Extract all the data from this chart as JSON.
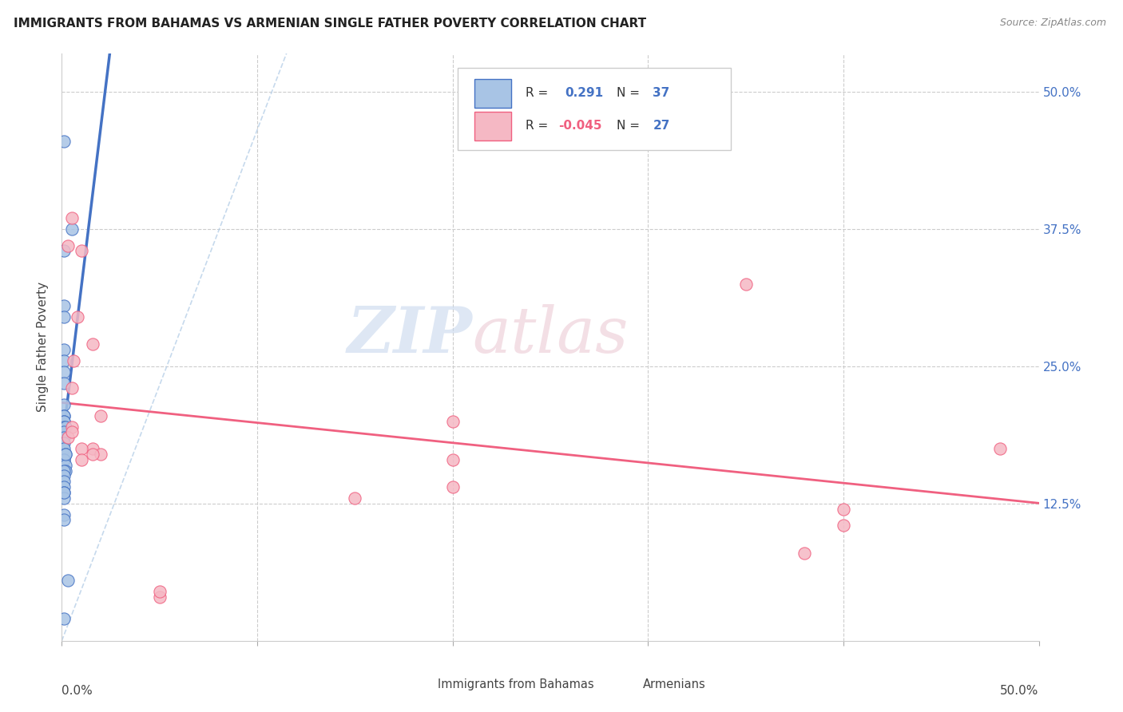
{
  "title": "IMMIGRANTS FROM BAHAMAS VS ARMENIAN SINGLE FATHER POVERTY CORRELATION CHART",
  "source": "Source: ZipAtlas.com",
  "ylabel": "Single Father Poverty",
  "ytick_values": [
    0.125,
    0.25,
    0.375,
    0.5
  ],
  "ytick_labels": [
    "12.5%",
    "25.0%",
    "37.5%",
    "50.0%"
  ],
  "xlim": [
    0.0,
    0.5
  ],
  "ylim": [
    0.0,
    0.535
  ],
  "color_bahamas": "#a8c4e5",
  "color_armenian": "#f5b8c4",
  "line_color_bahamas": "#4472c4",
  "line_color_armenian": "#f06080",
  "dash_color": "#b0c8e8",
  "watermark_zip": "ZIP",
  "watermark_atlas": "atlas",
  "legend_text1": "R =  0.291   N = 37",
  "legend_text2": "R = -0.045   N = 27",
  "bahamas_x": [
    0.001,
    0.005,
    0.001,
    0.001,
    0.001,
    0.001,
    0.001,
    0.001,
    0.001,
    0.001,
    0.001,
    0.001,
    0.001,
    0.001,
    0.001,
    0.002,
    0.001,
    0.001,
    0.001,
    0.001,
    0.002,
    0.001,
    0.001,
    0.002,
    0.002,
    0.001,
    0.001,
    0.001,
    0.001,
    0.001,
    0.001,
    0.001,
    0.002,
    0.001,
    0.001,
    0.003,
    0.001
  ],
  "bahamas_y": [
    0.455,
    0.375,
    0.355,
    0.305,
    0.295,
    0.265,
    0.255,
    0.245,
    0.235,
    0.215,
    0.205,
    0.205,
    0.2,
    0.2,
    0.195,
    0.195,
    0.19,
    0.185,
    0.18,
    0.175,
    0.17,
    0.165,
    0.165,
    0.16,
    0.155,
    0.155,
    0.15,
    0.145,
    0.14,
    0.135,
    0.13,
    0.135,
    0.17,
    0.115,
    0.11,
    0.055,
    0.02
  ],
  "armenian_x": [
    0.005,
    0.003,
    0.01,
    0.008,
    0.006,
    0.016,
    0.005,
    0.005,
    0.003,
    0.02,
    0.016,
    0.02,
    0.005,
    0.016,
    0.48,
    0.2,
    0.35,
    0.2,
    0.01,
    0.01,
    0.15,
    0.2,
    0.4,
    0.4,
    0.38,
    0.05,
    0.05
  ],
  "armenian_y": [
    0.385,
    0.36,
    0.355,
    0.295,
    0.255,
    0.27,
    0.23,
    0.195,
    0.185,
    0.205,
    0.175,
    0.17,
    0.19,
    0.17,
    0.175,
    0.165,
    0.325,
    0.14,
    0.175,
    0.165,
    0.13,
    0.2,
    0.12,
    0.105,
    0.08,
    0.04,
    0.045
  ]
}
